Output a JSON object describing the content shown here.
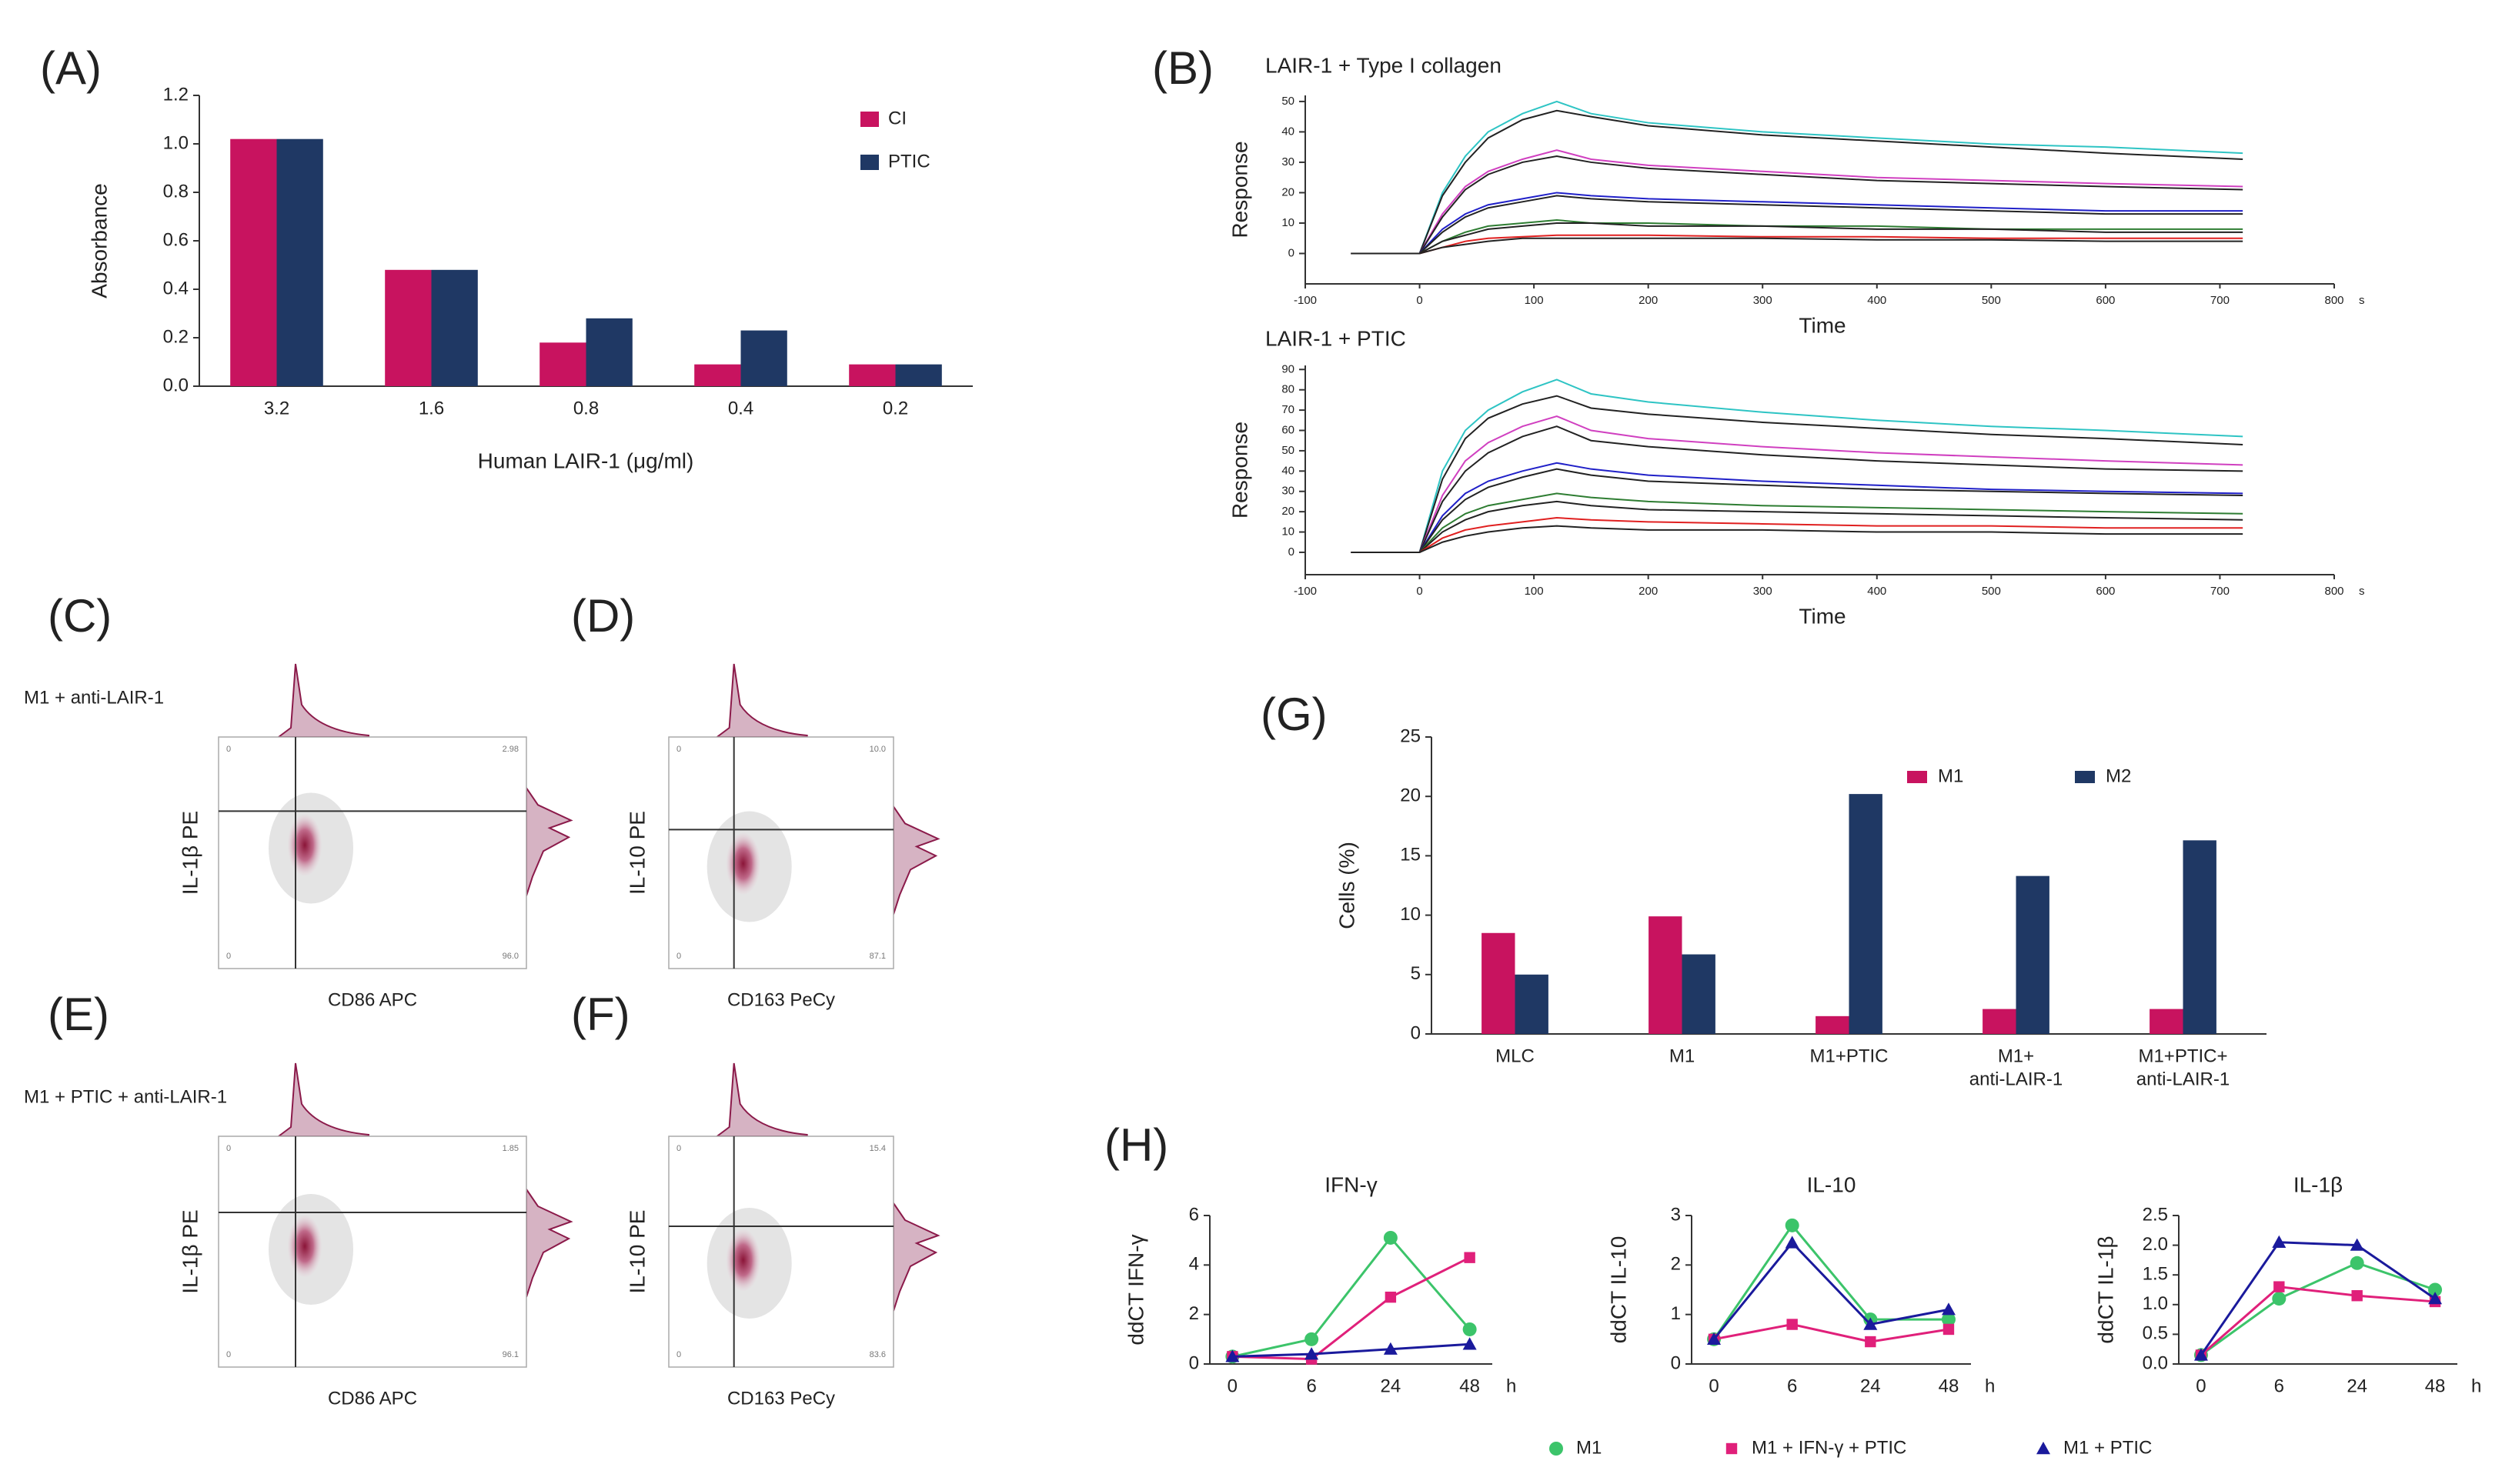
{
  "chart_data": [
    {
      "type": "bar",
      "panel": "(A)",
      "ylabel": "Absorbance",
      "xlabel": "Human LAIR-1 (μg/ml)",
      "categories": [
        "3.2",
        "1.6",
        "0.8",
        "0.4",
        "0.2"
      ],
      "series": [
        {
          "name": "CI",
          "color": "#c8135f",
          "values": [
            1.02,
            0.48,
            0.18,
            0.09,
            0.09
          ]
        },
        {
          "name": "PTIC",
          "color": "#1f3864",
          "values": [
            1.02,
            0.48,
            0.28,
            0.23,
            0.09
          ]
        }
      ],
      "ylim": [
        0,
        1.2
      ],
      "yticks": [
        {
          "value": 0,
          "label": "0.0"
        },
        0.2,
        0.4,
        0.6,
        0.8,
        {
          "value": 1,
          "label": "1.0"
        },
        1.2
      ],
      "legend": "top-right"
    },
    {
      "type": "line",
      "panel": "(B)",
      "title": "LAIR-1 + Type I collagen",
      "ylabel": "Response",
      "xlabel": "Time",
      "x_unit": "s",
      "x": [
        -60,
        0,
        20,
        40,
        60,
        90,
        120,
        150,
        200,
        300,
        400,
        500,
        600,
        720
      ],
      "series": [
        {
          "color": "#2ec4c4",
          "values": [
            0,
            0,
            20,
            32,
            40,
            46,
            50,
            46,
            43,
            40,
            38,
            36,
            35,
            33
          ]
        },
        {
          "color": "#222222",
          "values": [
            0,
            0,
            19,
            30,
            38,
            44,
            47,
            45,
            42,
            39,
            37,
            35,
            33,
            31
          ]
        },
        {
          "color": "#d040c0",
          "values": [
            0,
            0,
            13,
            22,
            27,
            31,
            34,
            31,
            29,
            27,
            25,
            24,
            23,
            22
          ]
        },
        {
          "color": "#222222",
          "values": [
            0,
            0,
            12,
            21,
            26,
            30,
            32,
            30,
            28,
            26,
            24,
            23,
            22,
            21
          ]
        },
        {
          "color": "#2020c8",
          "values": [
            0,
            0,
            8,
            13,
            16,
            18,
            20,
            19,
            18,
            17,
            16,
            15,
            14,
            14
          ]
        },
        {
          "color": "#222222",
          "values": [
            0,
            0,
            7,
            12,
            15,
            17,
            19,
            18,
            17,
            16,
            15,
            14,
            13,
            13
          ]
        },
        {
          "color": "#2e7d32",
          "values": [
            0,
            0,
            4,
            7,
            9,
            10,
            11,
            10,
            10,
            9,
            9,
            8,
            8,
            8
          ]
        },
        {
          "color": "#222222",
          "values": [
            0,
            0,
            4,
            6,
            8,
            9,
            10,
            10,
            9,
            9,
            8,
            8,
            7,
            7
          ]
        },
        {
          "color": "#e02020",
          "values": [
            0,
            0,
            2,
            4,
            5,
            5.5,
            6,
            6,
            6,
            5.5,
            5.5,
            5,
            5,
            5
          ]
        },
        {
          "color": "#222222",
          "values": [
            0,
            0,
            2,
            3,
            4,
            5,
            5,
            5,
            5,
            5,
            4.5,
            4.5,
            4,
            4
          ]
        }
      ],
      "xlim": [
        -100,
        800
      ],
      "xticks": [
        -100,
        0,
        100,
        200,
        300,
        400,
        500,
        600,
        700,
        800
      ],
      "ylim": [
        -10,
        52
      ],
      "yticks": [
        0,
        10,
        20,
        30,
        40,
        50
      ]
    },
    {
      "type": "line",
      "title": "LAIR-1 + PTIC",
      "ylabel": "Response",
      "xlabel": "Time",
      "x_unit": "s",
      "x": [
        -60,
        0,
        20,
        40,
        60,
        90,
        120,
        150,
        200,
        300,
        400,
        500,
        600,
        720
      ],
      "series": [
        {
          "color": "#2ec4c4",
          "values": [
            0,
            0,
            40,
            60,
            70,
            79,
            85,
            78,
            74,
            69,
            65,
            62,
            60,
            57
          ]
        },
        {
          "color": "#222222",
          "values": [
            0,
            0,
            36,
            56,
            66,
            73,
            77,
            71,
            68,
            64,
            61,
            58,
            56,
            53
          ]
        },
        {
          "color": "#d040c0",
          "values": [
            0,
            0,
            28,
            45,
            54,
            62,
            67,
            60,
            56,
            52,
            49,
            47,
            45,
            43
          ]
        },
        {
          "color": "#222222",
          "values": [
            0,
            0,
            25,
            40,
            49,
            57,
            62,
            55,
            52,
            48,
            45,
            43,
            41,
            40
          ]
        },
        {
          "color": "#2020c8",
          "values": [
            0,
            0,
            18,
            29,
            35,
            40,
            44,
            41,
            38,
            35,
            33,
            31,
            30,
            29
          ]
        },
        {
          "color": "#222222",
          "values": [
            0,
            0,
            16,
            26,
            32,
            37,
            41,
            38,
            35,
            33,
            31,
            30,
            29,
            28
          ]
        },
        {
          "color": "#2e7d32",
          "values": [
            0,
            0,
            12,
            19,
            23,
            26,
            29,
            27,
            25,
            23,
            22,
            21,
            20,
            19
          ]
        },
        {
          "color": "#222222",
          "values": [
            0,
            0,
            10,
            16,
            20,
            23,
            25,
            23,
            21,
            20,
            19,
            18,
            17,
            16
          ]
        },
        {
          "color": "#e02020",
          "values": [
            0,
            0,
            7,
            11,
            13,
            15,
            17,
            16,
            15,
            14,
            13,
            13,
            12,
            12
          ]
        },
        {
          "color": "#222222",
          "values": [
            0,
            0,
            5,
            8,
            10,
            12,
            13,
            12,
            11,
            11,
            10,
            10,
            9,
            9
          ]
        }
      ],
      "xlim": [
        -100,
        800
      ],
      "xticks": [
        -100,
        0,
        100,
        200,
        300,
        400,
        500,
        600,
        700,
        800
      ],
      "ylim": [
        -11,
        92
      ],
      "yticks": [
        0,
        10,
        20,
        30,
        40,
        50,
        60,
        70,
        80,
        90
      ]
    },
    {
      "type": "flow",
      "panel": "(C)",
      "label": "M1 + anti-LAIR-1",
      "xlabel": "CD86 APC",
      "ylabel": "IL-1β PE",
      "quadrants": [
        "0",
        "2.98",
        "0",
        "96.0"
      ]
    },
    {
      "type": "flow",
      "panel": "(D)",
      "xlabel": "CD163 PeCy",
      "ylabel": "IL-10 PE",
      "quadrants": [
        "0",
        "10.0",
        "0",
        "87.1"
      ]
    },
    {
      "type": "flow",
      "panel": "(E)",
      "label": "M1 + PTIC + anti-LAIR-1",
      "xlabel": "CD86 APC",
      "ylabel": "IL-1β PE",
      "quadrants": [
        "0",
        "1.85",
        "0",
        "96.1"
      ]
    },
    {
      "type": "flow",
      "panel": "(F)",
      "xlabel": "CD163 PeCy",
      "ylabel": "IL-10 PE",
      "quadrants": [
        "0",
        "15.4",
        "0",
        "83.6"
      ]
    },
    {
      "type": "bar",
      "panel": "(G)",
      "ylabel": "Cells (%)",
      "categories": [
        [
          "MLC"
        ],
        [
          "M1"
        ],
        [
          "M1+PTIC"
        ],
        [
          "M1+",
          "anti-LAIR-1"
        ],
        [
          "M1+PTIC+",
          "anti-LAIR-1"
        ]
      ],
      "series": [
        {
          "name": "M1",
          "color": "#c8135f",
          "values": [
            8.5,
            9.9,
            1.5,
            2.1,
            2.1
          ]
        },
        {
          "name": "M2",
          "color": "#1f3864",
          "values": [
            5,
            6.7,
            20.2,
            13.3,
            16.3
          ]
        }
      ],
      "ylim": [
        0,
        25
      ],
      "yticks": [
        0,
        5,
        10,
        15,
        20,
        25
      ],
      "legend": "top"
    },
    {
      "type": "line",
      "panel": "(H)",
      "title": "IFN-γ",
      "ylabel": "ddCT IFN-γ",
      "x_unit": "h",
      "categories": [
        "0",
        "6",
        "24",
        "48"
      ],
      "series": [
        {
          "name": "M1",
          "color": "#3cc46a",
          "marker": "circle",
          "values": [
            0.3,
            1.0,
            5.1,
            1.4
          ]
        },
        {
          "name": "M1 + IFN-γ + PTIC",
          "color": "#e0207a",
          "marker": "square",
          "values": [
            0.3,
            0.2,
            2.7,
            4.3
          ]
        },
        {
          "name": "M1 + PTIC",
          "color": "#1a1a9c",
          "marker": "triangle",
          "values": [
            0.3,
            0.4,
            0.6,
            0.8
          ]
        }
      ],
      "ylim": [
        0,
        6
      ],
      "yticks": [
        0,
        2,
        4,
        6
      ],
      "legend": "bottom"
    },
    {
      "type": "line",
      "title": "IL-10",
      "ylabel": "ddCT IL-10",
      "x_unit": "h",
      "categories": [
        "0",
        "6",
        "24",
        "48"
      ],
      "series": [
        {
          "name": "M1",
          "color": "#3cc46a",
          "marker": "circle",
          "values": [
            0.5,
            2.8,
            0.9,
            0.9
          ]
        },
        {
          "name": "M1 + IFN-γ + PTIC",
          "color": "#e0207a",
          "marker": "square",
          "values": [
            0.5,
            0.8,
            0.45,
            0.7
          ]
        },
        {
          "name": "M1 + PTIC",
          "color": "#1a1a9c",
          "marker": "triangle",
          "values": [
            0.5,
            2.45,
            0.8,
            1.1
          ]
        }
      ],
      "ylim": [
        0,
        3
      ],
      "yticks": [
        0,
        1,
        2,
        3
      ]
    },
    {
      "type": "line",
      "title": "IL-1β",
      "ylabel": "ddCT IL-1β",
      "x_unit": "h",
      "categories": [
        "0",
        "6",
        "24",
        "48"
      ],
      "series": [
        {
          "name": "M1",
          "color": "#3cc46a",
          "marker": "circle",
          "values": [
            0.15,
            1.1,
            1.7,
            1.25
          ]
        },
        {
          "name": "M1 + IFN-γ + PTIC",
          "color": "#e0207a",
          "marker": "square",
          "values": [
            0.15,
            1.3,
            1.15,
            1.05
          ]
        },
        {
          "name": "M1 + PTIC",
          "color": "#1a1a9c",
          "marker": "triangle",
          "values": [
            0.15,
            2.05,
            2.0,
            1.1
          ]
        }
      ],
      "ylim": [
        0,
        2.5
      ],
      "yticks": [
        {
          "value": 0,
          "label": "0.0"
        },
        0.5,
        {
          "value": 1,
          "label": "1.0"
        },
        1.5,
        {
          "value": 2,
          "label": "2.0"
        },
        2.5
      ]
    }
  ]
}
